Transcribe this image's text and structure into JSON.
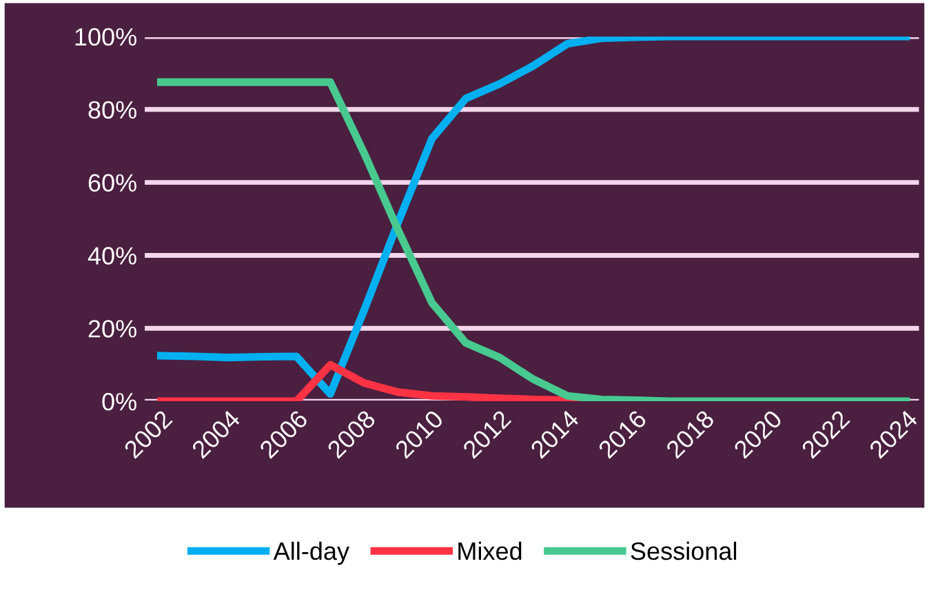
{
  "chart_data": {
    "type": "line",
    "x": [
      2002,
      2003,
      2004,
      2005,
      2006,
      2007,
      2008,
      2009,
      2010,
      2011,
      2012,
      2013,
      2014,
      2015,
      2016,
      2017,
      2018,
      2019,
      2020,
      2021,
      2022,
      2023,
      2024
    ],
    "series": [
      {
        "name": "All-day",
        "color": "#00b0f0",
        "values": [
          12.5,
          12.3,
          12,
          12.2,
          12.3,
          2,
          25,
          49,
          72,
          83,
          87,
          92,
          98,
          99.5,
          99.8,
          100,
          100,
          100,
          100,
          100,
          100,
          100,
          100
        ]
      },
      {
        "name": "Mixed",
        "color": "#ff3344",
        "values": [
          0,
          0,
          0,
          0,
          0,
          10,
          5,
          2.5,
          1.5,
          1.2,
          0.8,
          0.5,
          0.3,
          0,
          null,
          null,
          null,
          null,
          null,
          null,
          null,
          null,
          null
        ]
      },
      {
        "name": "Sessional",
        "color": "#48c98f",
        "values": [
          87.5,
          87.5,
          87.5,
          87.5,
          87.5,
          87.5,
          68,
          47,
          27,
          16,
          12,
          6,
          1.5,
          0.5,
          0.3,
          0,
          0,
          0,
          0,
          0,
          0,
          0,
          0
        ]
      }
    ],
    "xlim": [
      2001.5,
      2024.4
    ],
    "xticks": [
      2002,
      2004,
      2006,
      2008,
      2010,
      2012,
      2014,
      2016,
      2018,
      2020,
      2022,
      2024
    ],
    "ylim": [
      0,
      100
    ],
    "yticks": [
      {
        "value": 0,
        "label": "0%"
      },
      {
        "value": 20,
        "label": "20%"
      },
      {
        "value": 40,
        "label": "40%"
      },
      {
        "value": 60,
        "label": "60%"
      },
      {
        "value": 80,
        "label": "80%"
      },
      {
        "value": 100,
        "label": "100%"
      }
    ],
    "grid": "y",
    "legend": "bottom",
    "marker": "none",
    "line_style": "solid"
  }
}
